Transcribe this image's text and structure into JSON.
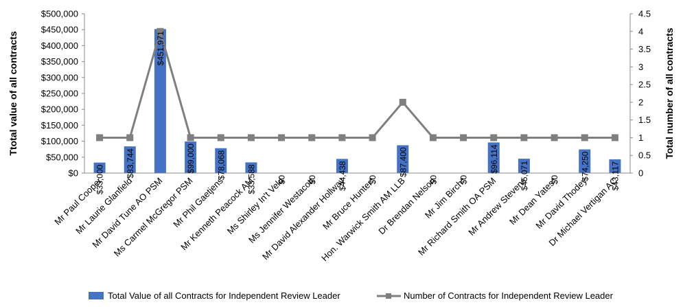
{
  "chart_data": {
    "type": "bar+line",
    "categories": [
      "Mr Paul Cooper",
      "Mr Laurie Glanfield",
      "Mr David Tune AO PSM",
      "Ms Carmel McGregor PSM",
      "Mr Phil Gaetjens",
      "Mr Kenneth Peacock AM",
      "Ms Shirley In't Veld",
      "Ms Jennifer Westacott",
      "Mr David Alexander Hollway",
      "Mr Bruce Hunter*",
      "Hon. Warwick Smith AM LLB",
      "Dr Brendan Nelson",
      "Mr Jim Birch*",
      "Mr Richard Smith OA PSM",
      "Mr Andrew Stevens",
      "Mr Dean Yates*",
      "Mr David Thodey",
      "Dr Michael Vertigan AC"
    ],
    "series": [
      {
        "name": "Total Value of all Contracts for Independent Review Leader",
        "type": "bar",
        "axis": "left",
        "color": "#4472C4",
        "values": [
          33000,
          83744,
          451971,
          99000,
          78068,
          33588,
          0,
          0,
          44438,
          0,
          87400,
          0,
          0,
          96114,
          45071,
          0,
          74250,
          43117
        ],
        "labels": [
          "$33,000",
          "$83,744",
          "$451,971",
          "$99,000",
          "$78,068",
          "$33,588",
          "$0",
          "$0",
          "$44,438",
          "$0",
          "$87,400",
          "$0",
          "$0",
          "$96,114",
          "$45,071",
          "$0",
          "$74,250",
          "$43,117"
        ]
      },
      {
        "name": "Number of Contracts for Independent Review Leader",
        "type": "line",
        "axis": "right",
        "color": "#7F7F7F",
        "values": [
          1,
          1,
          4,
          1,
          1,
          1,
          1,
          1,
          1,
          1,
          2,
          1,
          1,
          1,
          1,
          1,
          1,
          1
        ]
      }
    ],
    "y_left": {
      "label": "Ttotal value of all contracts",
      "range": [
        0,
        500000
      ],
      "ticks": [
        0,
        50000,
        100000,
        150000,
        200000,
        250000,
        300000,
        350000,
        400000,
        450000,
        500000
      ],
      "tick_labels": [
        "$0",
        "$50,000",
        "$100,000",
        "$150,000",
        "$200,000",
        "$250,000",
        "$300,000",
        "$350,000",
        "$400,000",
        "$450,000",
        "$500,000"
      ]
    },
    "y_right": {
      "label": "Total number of all contracts",
      "range": [
        0,
        4.5
      ],
      "ticks": [
        0,
        0.5,
        1,
        1.5,
        2,
        2.5,
        3,
        3.5,
        4,
        4.5
      ],
      "tick_labels": [
        "0",
        "0.5",
        "1",
        "1.5",
        "2",
        "2.5",
        "3",
        "3.5",
        "4",
        "4.5"
      ]
    },
    "grid": false,
    "legend_position": "bottom"
  }
}
